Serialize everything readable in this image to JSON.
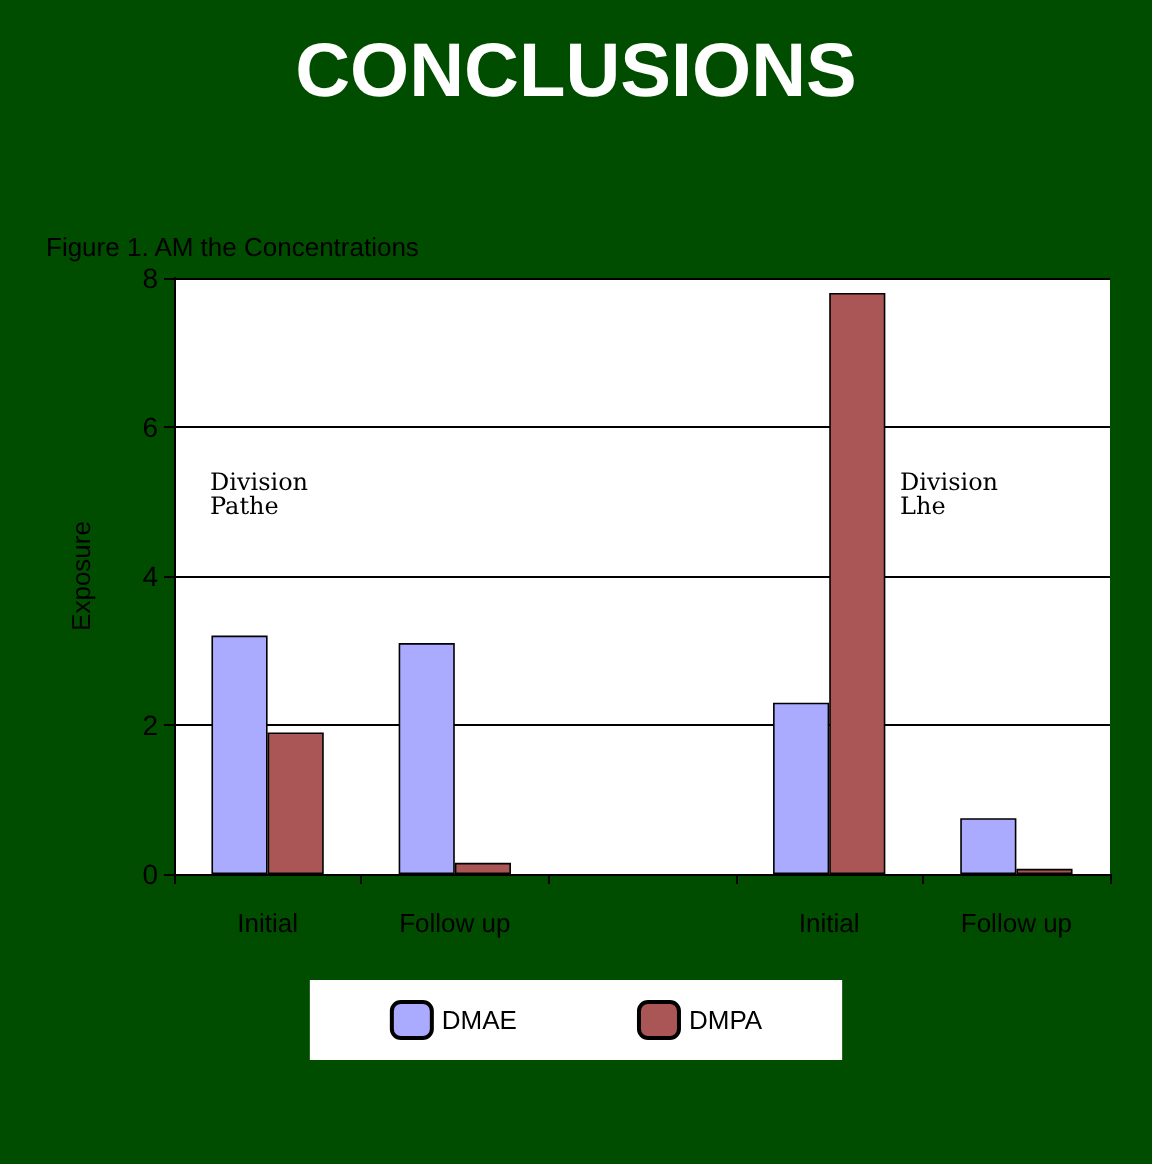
{
  "chart_data": {
    "type": "bar",
    "title": "CONCLUSIONS",
    "subtitle": "Figure 1. AM the Concentrations",
    "ylabel": "Exposure",
    "categories": [
      "Initial",
      "Follow up",
      null,
      "Initial",
      "Follow up"
    ],
    "series": [
      {
        "name": "DMAE",
        "color": "#aaaaff",
        "values": [
          3.2,
          3.1,
          null,
          2.3,
          0.75
        ]
      },
      {
        "name": "DMPA",
        "color": "#ab5656",
        "values": [
          1.9,
          0.15,
          null,
          7.8,
          0.07
        ]
      }
    ],
    "ylim": [
      0,
      8
    ],
    "yticks": [
      0,
      2,
      4,
      6,
      8
    ],
    "grid": "y",
    "legend": "bottom",
    "annotations": [
      "Division Pathe",
      "Division Lhe"
    ]
  }
}
